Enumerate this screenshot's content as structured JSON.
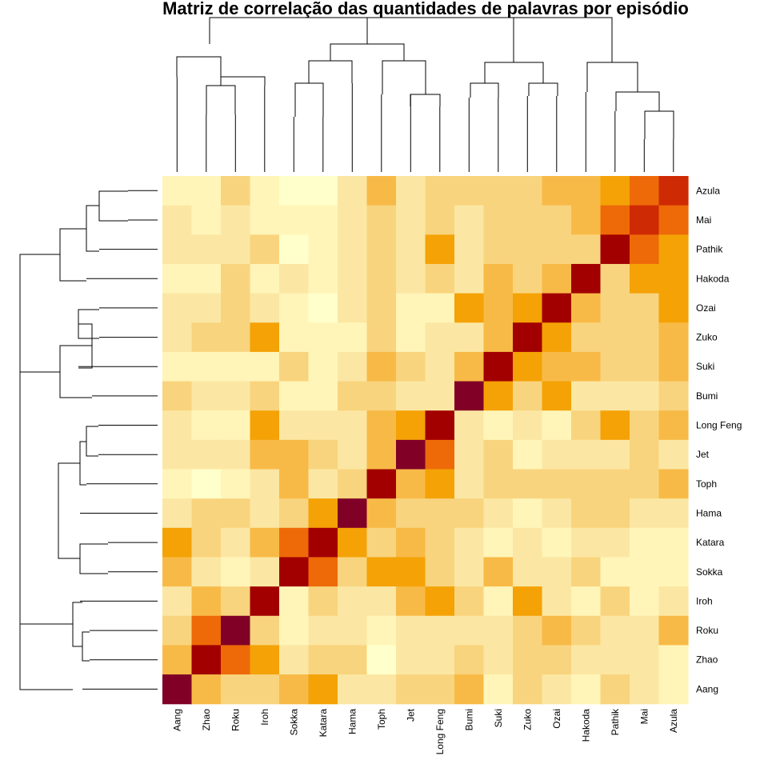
{
  "chart_data": {
    "type": "heatmap",
    "title": "Matriz de correlação das quantidades de palavras por episódio",
    "columns": [
      "Aang",
      "Zhao",
      "Roku",
      "Iroh",
      "Sokka",
      "Katara",
      "Hama",
      "Toph",
      "Jet",
      "Long Feng",
      "Bumi",
      "Suki",
      "Zuko",
      "Ozai",
      "Hakoda",
      "Pathik",
      "Mai",
      "Azula"
    ],
    "rows": [
      "Azula",
      "Mai",
      "Pathik",
      "Hakoda",
      "Ozai",
      "Zuko",
      "Suki",
      "Bumi",
      "Long Feng",
      "Jet",
      "Toph",
      "Hama",
      "Katara",
      "Sokka",
      "Iroh",
      "Roku",
      "Zhao",
      "Aang"
    ],
    "palette": [
      "#FFFFCC",
      "#FFF5B8",
      "#FBE7A3",
      "#F9D47E",
      "#F8BA47",
      "#F4A206",
      "#EE6A09",
      "#CE2A03",
      "#A20000",
      "#800026"
    ],
    "levels": [
      [
        1,
        1,
        3,
        1,
        0,
        0,
        2,
        4,
        2,
        3,
        3,
        3,
        3,
        4,
        4,
        5,
        6,
        7
      ],
      [
        2,
        1,
        2,
        1,
        1,
        1,
        2,
        3,
        2,
        3,
        2,
        3,
        3,
        3,
        4,
        6,
        7,
        6
      ],
      [
        2,
        2,
        2,
        3,
        0,
        1,
        2,
        3,
        2,
        5,
        2,
        3,
        3,
        3,
        3,
        8,
        6,
        5
      ],
      [
        1,
        1,
        3,
        1,
        2,
        1,
        2,
        3,
        2,
        3,
        2,
        4,
        3,
        4,
        8,
        3,
        5,
        5
      ],
      [
        2,
        2,
        3,
        2,
        1,
        0,
        2,
        3,
        1,
        1,
        5,
        4,
        5,
        8,
        4,
        3,
        3,
        5
      ],
      [
        2,
        3,
        3,
        5,
        1,
        1,
        1,
        3,
        1,
        2,
        2,
        4,
        8,
        5,
        3,
        3,
        3,
        4
      ],
      [
        1,
        1,
        1,
        1,
        3,
        1,
        2,
        4,
        3,
        2,
        4,
        8,
        5,
        4,
        4,
        3,
        3,
        4
      ],
      [
        3,
        2,
        2,
        3,
        1,
        1,
        3,
        3,
        2,
        2,
        9,
        5,
        3,
        5,
        2,
        2,
        2,
        3
      ],
      [
        2,
        1,
        1,
        5,
        2,
        2,
        2,
        4,
        5,
        8,
        2,
        1,
        2,
        1,
        3,
        5,
        3,
        4
      ],
      [
        2,
        2,
        2,
        4,
        4,
        3,
        2,
        4,
        9,
        6,
        2,
        3,
        1,
        2,
        2,
        2,
        3,
        2
      ],
      [
        1,
        0,
        1,
        2,
        4,
        2,
        3,
        8,
        4,
        5,
        2,
        3,
        3,
        3,
        3,
        3,
        3,
        4
      ],
      [
        2,
        3,
        3,
        2,
        3,
        5,
        9,
        4,
        3,
        3,
        3,
        2,
        1,
        2,
        3,
        3,
        2,
        2
      ],
      [
        5,
        3,
        2,
        4,
        6,
        8,
        5,
        3,
        4,
        3,
        2,
        1,
        2,
        1,
        2,
        2,
        1,
        1
      ],
      [
        4,
        2,
        1,
        2,
        8,
        6,
        3,
        5,
        5,
        3,
        2,
        4,
        2,
        2,
        3,
        1,
        1,
        1
      ],
      [
        2,
        4,
        3,
        8,
        1,
        3,
        2,
        2,
        4,
        5,
        3,
        1,
        5,
        2,
        1,
        3,
        1,
        2
      ],
      [
        3,
        6,
        9,
        3,
        1,
        2,
        2,
        1,
        2,
        2,
        2,
        2,
        3,
        4,
        3,
        2,
        2,
        4
      ],
      [
        4,
        8,
        6,
        5,
        2,
        3,
        3,
        0,
        2,
        2,
        3,
        2,
        3,
        3,
        2,
        2,
        2,
        1
      ],
      [
        9,
        4,
        3,
        3,
        4,
        5,
        2,
        2,
        3,
        3,
        4,
        1,
        3,
        2,
        1,
        3,
        2,
        1
      ]
    ]
  }
}
